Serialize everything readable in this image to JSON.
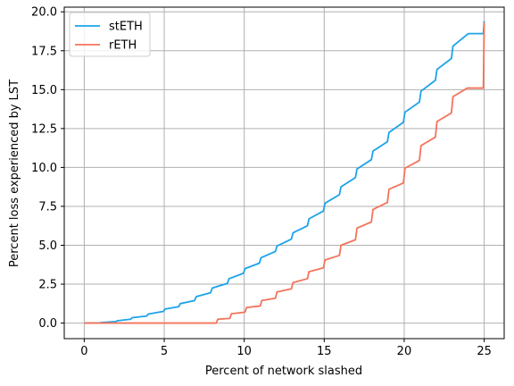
{
  "chart_data": {
    "type": "line",
    "title": "",
    "xlabel": "Percent of network slashed",
    "ylabel": "Percent loss experienced by LST",
    "xlim": [
      -1.25,
      26.25
    ],
    "ylim": [
      -1.0,
      20.3
    ],
    "xticks": [
      0,
      5,
      10,
      15,
      20,
      25
    ],
    "yticks": [
      0.0,
      2.5,
      5.0,
      7.5,
      10.0,
      12.5,
      15.0,
      17.5,
      20.0
    ],
    "xtick_labels": [
      "0",
      "5",
      "10",
      "15",
      "20",
      "25"
    ],
    "ytick_labels": [
      "0.0",
      "2.5",
      "5.0",
      "7.5",
      "10.0",
      "12.5",
      "15.0",
      "17.5",
      "20.0"
    ],
    "grid": true,
    "legend_position": "upper-left",
    "series": [
      {
        "name": "stETH",
        "color": "#1ca3ec",
        "points": [
          [
            0,
            0
          ],
          [
            1.0,
            0.02
          ],
          [
            1.05,
            0.03
          ],
          [
            2.0,
            0.1
          ],
          [
            2.05,
            0.15
          ],
          [
            2.9,
            0.25
          ],
          [
            3.0,
            0.35
          ],
          [
            3.9,
            0.45
          ],
          [
            4.0,
            0.58
          ],
          [
            4.95,
            0.75
          ],
          [
            5.05,
            0.9
          ],
          [
            5.9,
            1.05
          ],
          [
            6.0,
            1.25
          ],
          [
            6.9,
            1.45
          ],
          [
            7.0,
            1.7
          ],
          [
            7.9,
            1.95
          ],
          [
            8.0,
            2.25
          ],
          [
            8.95,
            2.55
          ],
          [
            9.05,
            2.85
          ],
          [
            9.95,
            3.2
          ],
          [
            10.05,
            3.5
          ],
          [
            10.95,
            3.85
          ],
          [
            11.05,
            4.2
          ],
          [
            11.95,
            4.6
          ],
          [
            12.05,
            4.95
          ],
          [
            12.95,
            5.4
          ],
          [
            13.05,
            5.8
          ],
          [
            13.95,
            6.25
          ],
          [
            14.05,
            6.7
          ],
          [
            14.95,
            7.2
          ],
          [
            15.05,
            7.7
          ],
          [
            15.95,
            8.25
          ],
          [
            16.05,
            8.75
          ],
          [
            16.95,
            9.35
          ],
          [
            17.05,
            9.9
          ],
          [
            17.95,
            10.5
          ],
          [
            18.05,
            11.05
          ],
          [
            18.95,
            11.65
          ],
          [
            19.05,
            12.25
          ],
          [
            19.95,
            12.9
          ],
          [
            20.05,
            13.55
          ],
          [
            20.95,
            14.2
          ],
          [
            21.05,
            14.9
          ],
          [
            21.95,
            15.6
          ],
          [
            22.05,
            16.3
          ],
          [
            22.95,
            17.0
          ],
          [
            23.05,
            17.8
          ],
          [
            23.95,
            18.55
          ],
          [
            24.05,
            18.6
          ],
          [
            24.95,
            18.6
          ],
          [
            25.0,
            19.4
          ]
        ]
      },
      {
        "name": "rETH",
        "color": "#f4735a",
        "points": [
          [
            0,
            0
          ],
          [
            8.25,
            0
          ],
          [
            8.35,
            0.25
          ],
          [
            9.1,
            0.3
          ],
          [
            9.2,
            0.6
          ],
          [
            10.05,
            0.7
          ],
          [
            10.15,
            1.0
          ],
          [
            11.0,
            1.1
          ],
          [
            11.1,
            1.45
          ],
          [
            11.95,
            1.6
          ],
          [
            12.05,
            2.0
          ],
          [
            12.95,
            2.2
          ],
          [
            13.05,
            2.6
          ],
          [
            13.95,
            2.85
          ],
          [
            14.05,
            3.3
          ],
          [
            14.95,
            3.55
          ],
          [
            15.05,
            4.05
          ],
          [
            15.95,
            4.35
          ],
          [
            16.05,
            5.0
          ],
          [
            16.95,
            5.35
          ],
          [
            17.05,
            6.1
          ],
          [
            17.95,
            6.5
          ],
          [
            18.05,
            7.3
          ],
          [
            18.95,
            7.75
          ],
          [
            19.05,
            8.6
          ],
          [
            19.95,
            9.0
          ],
          [
            20.05,
            9.95
          ],
          [
            20.95,
            10.45
          ],
          [
            21.05,
            11.4
          ],
          [
            21.95,
            11.95
          ],
          [
            22.05,
            12.95
          ],
          [
            22.95,
            13.5
          ],
          [
            23.05,
            14.55
          ],
          [
            23.95,
            15.1
          ],
          [
            24.05,
            15.1
          ],
          [
            24.95,
            15.1
          ],
          [
            25.0,
            19.3
          ]
        ]
      }
    ]
  }
}
